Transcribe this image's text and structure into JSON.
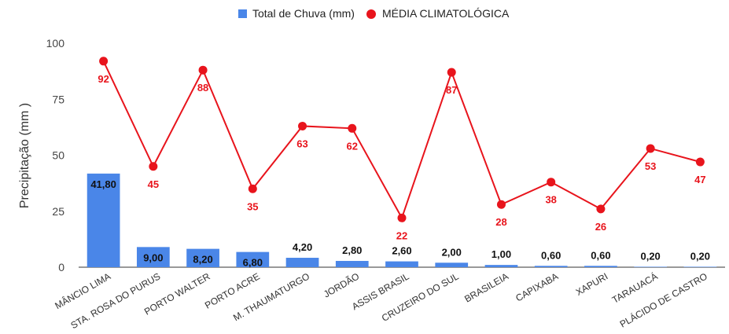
{
  "chart_data": {
    "type": "bar+line",
    "categories": [
      "MÂNCIO LIMA",
      "STA. ROSA DO PURUS",
      "PORTO WALTER",
      "PORTO ACRE",
      "M. THAUMATURGO",
      "JORDÃO",
      "ASSIS BRASIL",
      "CRUZEIRO DO SUL",
      "BRASILEIA",
      "CAPIXABA",
      "XAPURI",
      "TARAUACÁ",
      "PLÁCIDO DE CASTRO"
    ],
    "series": [
      {
        "name": "Total de Chuva (mm)",
        "type": "bar",
        "color": "#4a86e8",
        "values": [
          41.8,
          9.0,
          8.2,
          6.8,
          4.2,
          2.8,
          2.6,
          2.0,
          1.0,
          0.6,
          0.6,
          0.2,
          0.2
        ],
        "labels": [
          "41,80",
          "9,00",
          "8,20",
          "6,80",
          "4,20",
          "2,80",
          "2,60",
          "2,00",
          "1,00",
          "0,60",
          "0,60",
          "0,20",
          "0,20"
        ]
      },
      {
        "name": "MÉDIA CLIMATOLÓGICA",
        "type": "line",
        "color": "#e8141c",
        "values": [
          92,
          45,
          88,
          35,
          63,
          62,
          22,
          87,
          28,
          38,
          26,
          53,
          47
        ],
        "labels": [
          "92",
          "45",
          "88",
          "35",
          "63",
          "62",
          "22",
          "87",
          "28",
          "38",
          "26",
          "53",
          "47"
        ]
      }
    ],
    "ylabel": "Precipitação (mm )",
    "xlabel": "",
    "ylim": [
      0,
      100
    ],
    "yticks": [
      "0",
      "25",
      "50",
      "75",
      "100"
    ],
    "grid": false,
    "legend": "top-center"
  }
}
